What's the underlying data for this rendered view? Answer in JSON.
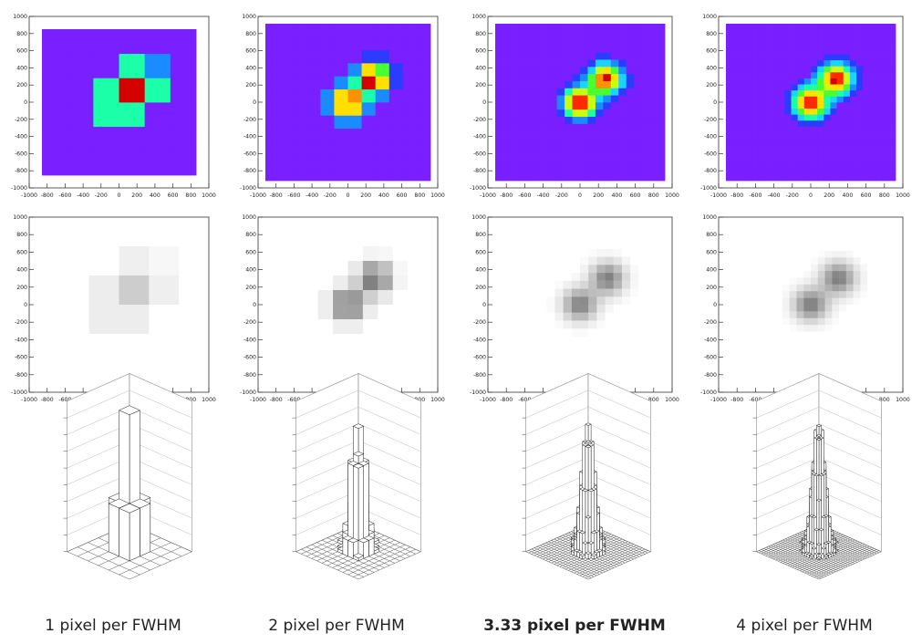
{
  "axis_ticks": [
    "-1000",
    "-800",
    "-600",
    "-400",
    "-200",
    "0",
    "200",
    "400",
    "600",
    "800",
    "1000"
  ],
  "colors": {
    "colormap": [
      "#7a1fff",
      "#2c3cff",
      "#1a8cff",
      "#1ad4ff",
      "#1affa8",
      "#48ff30",
      "#c6ff10",
      "#ffe000",
      "#ff9000",
      "#ff2a00",
      "#d40000"
    ],
    "grey_ink": "#1a1a1a",
    "axis": "#333333"
  },
  "captions": [
    {
      "label": "1 pixel per FWHM",
      "bold": false
    },
    {
      "label": "2 pixel per FWHM",
      "bold": false
    },
    {
      "label": "3.33 pixel per FWHM",
      "bold": true
    },
    {
      "label": "4 pixel per FWHM",
      "bold": false
    }
  ],
  "chart_data": [
    {
      "type": "heatmap",
      "style": "colz",
      "bins_per_fwhm": 1,
      "bins": 6,
      "xlim": [
        -1000,
        1000
      ],
      "ylim": [
        -1000,
        1000
      ],
      "sources": [
        {
          "x": 0,
          "y": 0,
          "amp": 1
        },
        {
          "x": 300,
          "y": 300,
          "amp": 1
        }
      ],
      "fwhm": 300
    },
    {
      "type": "heatmap",
      "style": "colz",
      "bins_per_fwhm": 2,
      "bins": 12,
      "xlim": [
        -1000,
        1000
      ],
      "ylim": [
        -1000,
        1000
      ],
      "sources": [
        {
          "x": 0,
          "y": 0,
          "amp": 1
        },
        {
          "x": 300,
          "y": 300,
          "amp": 1
        }
      ],
      "fwhm": 300
    },
    {
      "type": "heatmap",
      "style": "colz",
      "bins_per_fwhm": 3.33,
      "bins": 22,
      "xlim": [
        -1000,
        1000
      ],
      "ylim": [
        -1000,
        1000
      ],
      "sources": [
        {
          "x": 0,
          "y": 0,
          "amp": 1
        },
        {
          "x": 300,
          "y": 300,
          "amp": 1
        }
      ],
      "fwhm": 300
    },
    {
      "type": "heatmap",
      "style": "colz",
      "bins_per_fwhm": 4,
      "bins": 26,
      "xlim": [
        -1000,
        1000
      ],
      "ylim": [
        -1000,
        1000
      ],
      "sources": [
        {
          "x": 0,
          "y": 0,
          "amp": 1
        },
        {
          "x": 300,
          "y": 300,
          "amp": 1
        }
      ],
      "fwhm": 300
    },
    {
      "type": "heatmap",
      "style": "scatter",
      "bins_per_fwhm": 1,
      "bins": 6,
      "xlim": [
        -1000,
        1000
      ],
      "ylim": [
        -1000,
        1000
      ]
    },
    {
      "type": "heatmap",
      "style": "scatter",
      "bins_per_fwhm": 2,
      "bins": 12,
      "xlim": [
        -1000,
        1000
      ],
      "ylim": [
        -1000,
        1000
      ]
    },
    {
      "type": "heatmap",
      "style": "scatter",
      "bins_per_fwhm": 3.33,
      "bins": 22,
      "xlim": [
        -1000,
        1000
      ],
      "ylim": [
        -1000,
        1000
      ]
    },
    {
      "type": "heatmap",
      "style": "scatter",
      "bins_per_fwhm": 4,
      "bins": 26,
      "xlim": [
        -1000,
        1000
      ],
      "ylim": [
        -1000,
        1000
      ]
    },
    {
      "type": "heatmap",
      "style": "lego",
      "bins_per_fwhm": 1,
      "bins": 6
    },
    {
      "type": "heatmap",
      "style": "lego",
      "bins_per_fwhm": 2,
      "bins": 12
    },
    {
      "type": "heatmap",
      "style": "lego",
      "bins_per_fwhm": 3.33,
      "bins": 22
    },
    {
      "type": "heatmap",
      "style": "lego",
      "bins_per_fwhm": 4,
      "bins": 26
    }
  ]
}
